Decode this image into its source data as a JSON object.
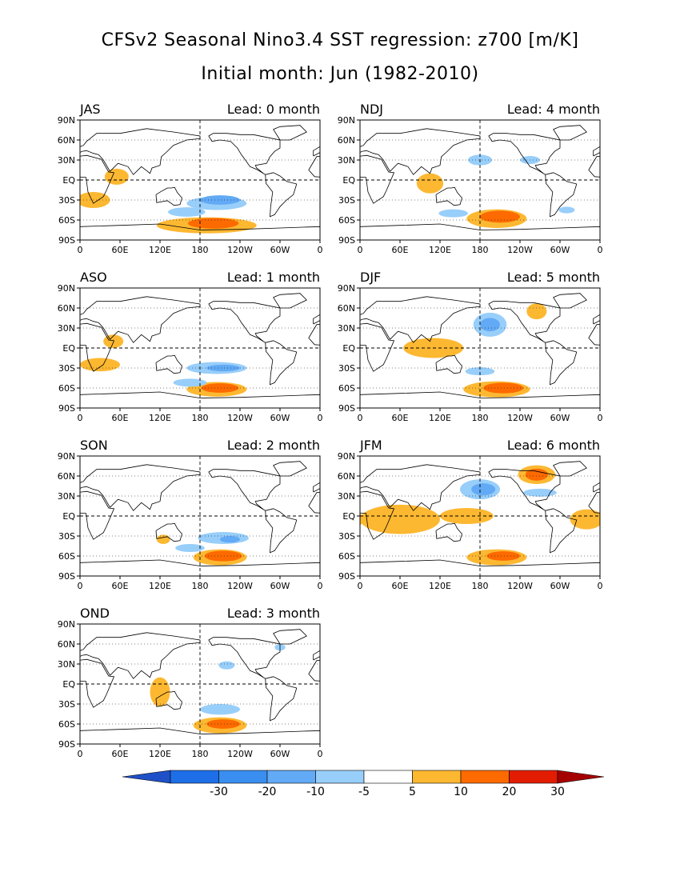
{
  "title": "CFSv2 Seasonal Nino3.4 SST regression: z700 [m/K]",
  "subtitle": "Initial month: Jun (1982-2010)",
  "lat_ticks": [
    "90N",
    "60N",
    "30N",
    "EQ",
    "30S",
    "60S",
    "90S"
  ],
  "lon_ticks": [
    "0",
    "60E",
    "120E",
    "180",
    "120W",
    "60W",
    "0"
  ],
  "panels": [
    {
      "season": "JAS",
      "lead": "Lead: 0 month",
      "anomalies": [
        {
          "lon": 20,
          "lat": -30,
          "rx": 25,
          "ry": 12,
          "level": 5
        },
        {
          "lon": 55,
          "lat": 5,
          "rx": 18,
          "ry": 12,
          "level": 5
        },
        {
          "lon": 190,
          "lat": -68,
          "rx": 75,
          "ry": 12,
          "level": 5
        },
        {
          "lon": 200,
          "lat": -65,
          "rx": 38,
          "ry": 8,
          "level": 10
        },
        {
          "lon": 205,
          "lat": -35,
          "rx": 45,
          "ry": 10,
          "level": -5
        },
        {
          "lon": 210,
          "lat": -30,
          "rx": 30,
          "ry": 7,
          "level": -10
        },
        {
          "lon": 160,
          "lat": -48,
          "rx": 28,
          "ry": 7,
          "level": -5
        }
      ]
    },
    {
      "season": "NDJ",
      "lead": "Lead: 4 month",
      "anomalies": [
        {
          "lon": 105,
          "lat": -5,
          "rx": 20,
          "ry": 15,
          "level": 5
        },
        {
          "lon": 205,
          "lat": -58,
          "rx": 45,
          "ry": 14,
          "level": 5
        },
        {
          "lon": 210,
          "lat": -55,
          "rx": 30,
          "ry": 9,
          "level": 10
        },
        {
          "lon": 180,
          "lat": 30,
          "rx": 18,
          "ry": 8,
          "level": -5
        },
        {
          "lon": 255,
          "lat": 30,
          "rx": 15,
          "ry": 6,
          "level": -5
        },
        {
          "lon": 140,
          "lat": -50,
          "rx": 22,
          "ry": 6,
          "level": -5
        },
        {
          "lon": 310,
          "lat": -45,
          "rx": 12,
          "ry": 5,
          "level": -5
        }
      ]
    },
    {
      "season": "ASO",
      "lead": "Lead: 1 month",
      "anomalies": [
        {
          "lon": 30,
          "lat": -25,
          "rx": 30,
          "ry": 10,
          "level": 5
        },
        {
          "lon": 50,
          "lat": 10,
          "rx": 15,
          "ry": 10,
          "level": 5
        },
        {
          "lon": 205,
          "lat": -62,
          "rx": 45,
          "ry": 11,
          "level": 5
        },
        {
          "lon": 210,
          "lat": -60,
          "rx": 28,
          "ry": 7,
          "level": 10
        },
        {
          "lon": 205,
          "lat": -30,
          "rx": 45,
          "ry": 9,
          "level": -5
        },
        {
          "lon": 215,
          "lat": -30,
          "rx": 25,
          "ry": 5,
          "level": -10
        },
        {
          "lon": 165,
          "lat": -52,
          "rx": 25,
          "ry": 6,
          "level": -5
        }
      ]
    },
    {
      "season": "DJF",
      "lead": "Lead: 5 month",
      "anomalies": [
        {
          "lon": 110,
          "lat": 0,
          "rx": 45,
          "ry": 15,
          "level": 5
        },
        {
          "lon": 205,
          "lat": -62,
          "rx": 50,
          "ry": 12,
          "level": 5
        },
        {
          "lon": 215,
          "lat": -60,
          "rx": 30,
          "ry": 8,
          "level": 10
        },
        {
          "lon": 195,
          "lat": 35,
          "rx": 25,
          "ry": 18,
          "level": -5
        },
        {
          "lon": 195,
          "lat": 35,
          "rx": 15,
          "ry": 10,
          "level": -10
        },
        {
          "lon": 265,
          "lat": 55,
          "rx": 15,
          "ry": 12,
          "level": 5
        },
        {
          "lon": 180,
          "lat": -35,
          "rx": 22,
          "ry": 6,
          "level": -5
        }
      ]
    },
    {
      "season": "SON",
      "lead": "Lead: 2 month",
      "anomalies": [
        {
          "lon": 210,
          "lat": -62,
          "rx": 40,
          "ry": 12,
          "level": 5
        },
        {
          "lon": 215,
          "lat": -60,
          "rx": 28,
          "ry": 8,
          "level": 10
        },
        {
          "lon": 215,
          "lat": -33,
          "rx": 38,
          "ry": 9,
          "level": -5
        },
        {
          "lon": 225,
          "lat": -35,
          "rx": 15,
          "ry": 5,
          "level": -10
        },
        {
          "lon": 125,
          "lat": -35,
          "rx": 10,
          "ry": 7,
          "level": 5
        },
        {
          "lon": 165,
          "lat": -48,
          "rx": 22,
          "ry": 6,
          "level": -5
        }
      ]
    },
    {
      "season": "JFM",
      "lead": "Lead: 6 month",
      "anomalies": [
        {
          "lon": 60,
          "lat": -5,
          "rx": 60,
          "ry": 22,
          "level": 5
        },
        {
          "lon": 160,
          "lat": 0,
          "rx": 40,
          "ry": 12,
          "level": 5
        },
        {
          "lon": 340,
          "lat": -5,
          "rx": 25,
          "ry": 15,
          "level": 5
        },
        {
          "lon": 205,
          "lat": -62,
          "rx": 45,
          "ry": 12,
          "level": 5
        },
        {
          "lon": 215,
          "lat": -60,
          "rx": 25,
          "ry": 7,
          "level": 10
        },
        {
          "lon": 180,
          "lat": 40,
          "rx": 30,
          "ry": 15,
          "level": -5
        },
        {
          "lon": 185,
          "lat": 40,
          "rx": 18,
          "ry": 9,
          "level": -10
        },
        {
          "lon": 265,
          "lat": 62,
          "rx": 28,
          "ry": 14,
          "level": 5
        },
        {
          "lon": 265,
          "lat": 62,
          "rx": 17,
          "ry": 9,
          "level": 10
        },
        {
          "lon": 270,
          "lat": 35,
          "rx": 25,
          "ry": 6,
          "level": -5
        }
      ]
    },
    {
      "season": "OND",
      "lead": "Lead: 3 month",
      "anomalies": [
        {
          "lon": 120,
          "lat": -12,
          "rx": 15,
          "ry": 22,
          "level": 5
        },
        {
          "lon": 210,
          "lat": -62,
          "rx": 40,
          "ry": 12,
          "level": 5
        },
        {
          "lon": 215,
          "lat": -60,
          "rx": 25,
          "ry": 7,
          "level": 10
        },
        {
          "lon": 210,
          "lat": -38,
          "rx": 30,
          "ry": 8,
          "level": -5
        },
        {
          "lon": 220,
          "lat": 28,
          "rx": 12,
          "ry": 6,
          "level": -5
        },
        {
          "lon": 300,
          "lat": 55,
          "rx": 8,
          "ry": 5,
          "level": -5
        }
      ]
    }
  ],
  "colorbar": {
    "tick_labels": [
      "-30",
      "-20",
      "-10",
      "-5",
      "5",
      "10",
      "20",
      "30"
    ],
    "colors": [
      "#1e6ee8",
      "#3a8ef0",
      "#62aaf5",
      "#98cefa",
      "#ffffff",
      "#fdb832",
      "#fd6a00",
      "#e21c00",
      "#a50000"
    ],
    "arrow_left_color": "#1f50c8",
    "arrow_right_color": "#a50000"
  },
  "level_colors": {
    "-30": "#1e6ee8",
    "-20": "#3a8ef0",
    "-10": "#62aaf5",
    "-5": "#98cefa",
    "5": "#fdb832",
    "10": "#fd6a00",
    "20": "#e21c00",
    "30": "#a50000"
  }
}
